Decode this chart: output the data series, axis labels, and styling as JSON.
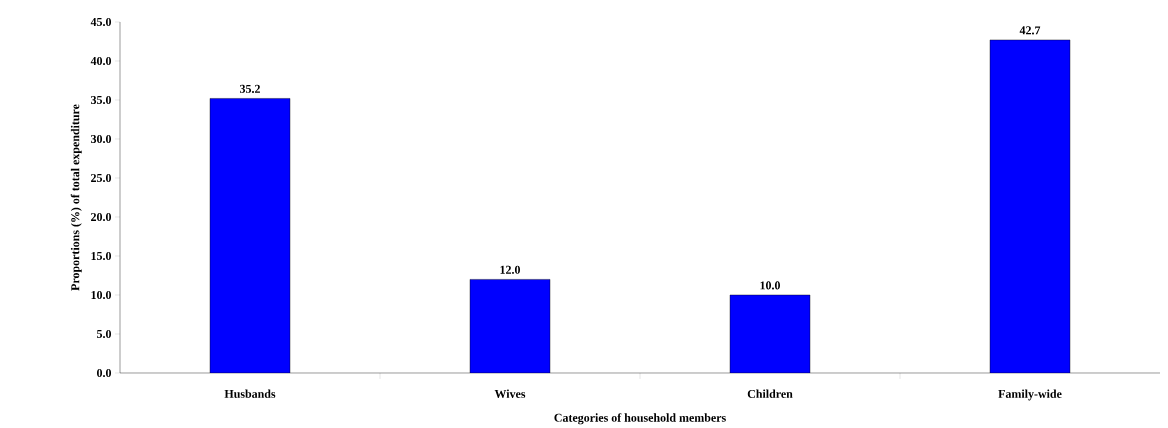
{
  "chart_data": {
    "type": "bar",
    "xlabel": "Categories of household members",
    "ylabel": "Proportions (%) of total expenditure",
    "categories": [
      "Husbands",
      "Wives",
      "Children",
      "Family-wide"
    ],
    "values": [
      35.2,
      12.0,
      10.0,
      42.7
    ],
    "color": "#0000ff",
    "value_labels": [
      "35.2",
      "12.0",
      "10.0",
      "42.7"
    ],
    "ylim": [
      0,
      45
    ],
    "yticks": [
      {
        "value": 0,
        "label": "0.0"
      },
      {
        "value": 5,
        "label": "5.0"
      },
      {
        "value": 10,
        "label": "10.0"
      },
      {
        "value": 15,
        "label": "15.0"
      },
      {
        "value": 20,
        "label": "20.0"
      },
      {
        "value": 25,
        "label": "25.0"
      },
      {
        "value": 30,
        "label": "30.0"
      },
      {
        "value": 35,
        "label": "35.0"
      },
      {
        "value": 40,
        "label": "40.0"
      },
      {
        "value": 45,
        "label": "45.0"
      }
    ]
  }
}
